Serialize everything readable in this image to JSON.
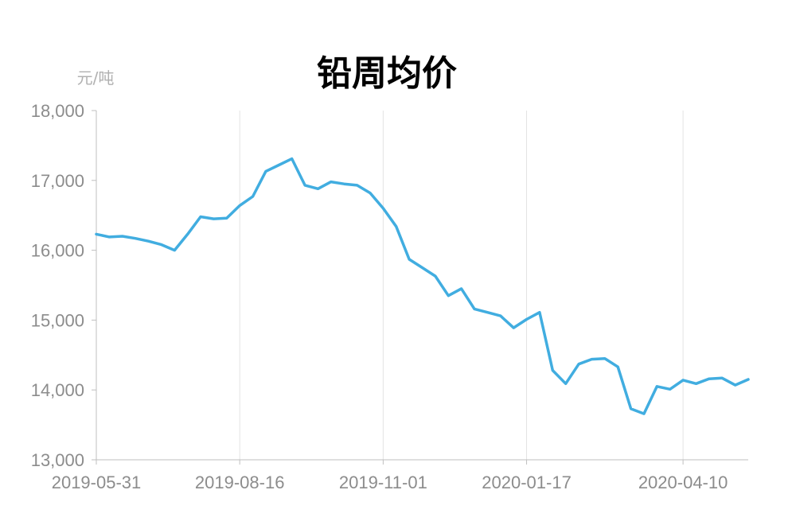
{
  "chart_data": {
    "type": "line",
    "title": "铅周均价",
    "unit_label": "元/吨",
    "xlabel": "",
    "ylabel": "",
    "ylim": [
      13000,
      18000
    ],
    "yticks": [
      13000,
      14000,
      15000,
      16000,
      17000,
      18000
    ],
    "ytick_labels": [
      "13,000",
      "14,000",
      "15,000",
      "16,000",
      "17,000",
      "18,000"
    ],
    "xtick_labels": [
      "2019-05-31",
      "2019-08-16",
      "2019-11-01",
      "2020-01-17",
      "2020-04-10"
    ],
    "grid": "vertical",
    "line_color": "#41ade0",
    "series": [
      {
        "x": [
          "2019-05-31",
          "2019-06-07",
          "2019-06-14",
          "2019-06-21",
          "2019-06-28",
          "2019-07-05",
          "2019-07-12",
          "2019-07-19",
          "2019-07-26",
          "2019-08-02",
          "2019-08-09",
          "2019-08-16",
          "2019-08-23",
          "2019-08-30",
          "2019-09-06",
          "2019-09-13",
          "2019-09-20",
          "2019-09-27",
          "2019-10-04",
          "2019-10-11",
          "2019-10-18",
          "2019-10-25",
          "2019-11-01",
          "2019-11-08",
          "2019-11-15",
          "2019-11-22",
          "2019-11-29",
          "2019-12-06",
          "2019-12-13",
          "2019-12-20",
          "2019-12-27",
          "2020-01-03",
          "2020-01-10",
          "2020-01-17",
          "2020-01-24",
          "2020-01-31",
          "2020-02-07",
          "2020-02-14",
          "2020-02-21",
          "2020-02-28",
          "2020-03-06",
          "2020-03-13",
          "2020-03-20",
          "2020-03-27",
          "2020-04-03",
          "2020-04-10",
          "2020-04-17",
          "2020-04-24",
          "2020-05-01",
          "2020-05-08",
          "2020-05-15"
        ],
        "values": [
          16230,
          16190,
          16200,
          16170,
          16130,
          16080,
          16000,
          16230,
          16480,
          16450,
          16460,
          16640,
          16770,
          17130,
          17220,
          17310,
          16930,
          16880,
          16980,
          16950,
          16930,
          16820,
          16600,
          16340,
          15870,
          15750,
          15630,
          15350,
          15450,
          15160,
          15110,
          15060,
          14890,
          15010,
          15110,
          14280,
          14090,
          14370,
          14440,
          14450,
          14330,
          13730,
          13660,
          14050,
          14010,
          14140,
          14090,
          14160,
          14170,
          14070,
          14150
        ]
      }
    ]
  }
}
